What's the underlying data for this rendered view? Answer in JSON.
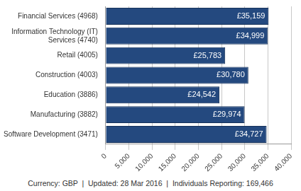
{
  "chart_data": {
    "type": "bar",
    "orientation": "horizontal",
    "categories": [
      "Financial Services (4968)",
      "Information Technology (IT) Services (4740)",
      "Retail (4005)",
      "Construction (4003)",
      "Education (3886)",
      "Manufacturing (3882)",
      "Software Development (3471)"
    ],
    "values": [
      35159,
      34999,
      25783,
      30780,
      24542,
      29974,
      34727
    ],
    "value_labels": [
      "£35,159",
      "£34,999",
      "£25,783",
      "£30,780",
      "£24,542",
      "£29,974",
      "£34,727"
    ],
    "data_labels": true,
    "color": "#24497f",
    "xlim": [
      0,
      40000
    ],
    "xticks": [
      0,
      {
        "value": 5000,
        "label": "5,000"
      },
      {
        "value": 10000,
        "label": "10,000"
      },
      {
        "value": 15000,
        "label": "15,000"
      },
      {
        "value": 20000,
        "label": "20,000"
      },
      {
        "value": 25000,
        "label": "25,000"
      },
      {
        "value": 30000,
        "label": "30,000"
      },
      {
        "value": 35000,
        "label": "35,000"
      },
      {
        "value": 40000,
        "label": "40,000"
      }
    ],
    "grid": true,
    "annotations": [
      "Currency: GBP  |  Updated: 28 Mar 2016  |  Individuals Reporting: 169,466"
    ]
  }
}
